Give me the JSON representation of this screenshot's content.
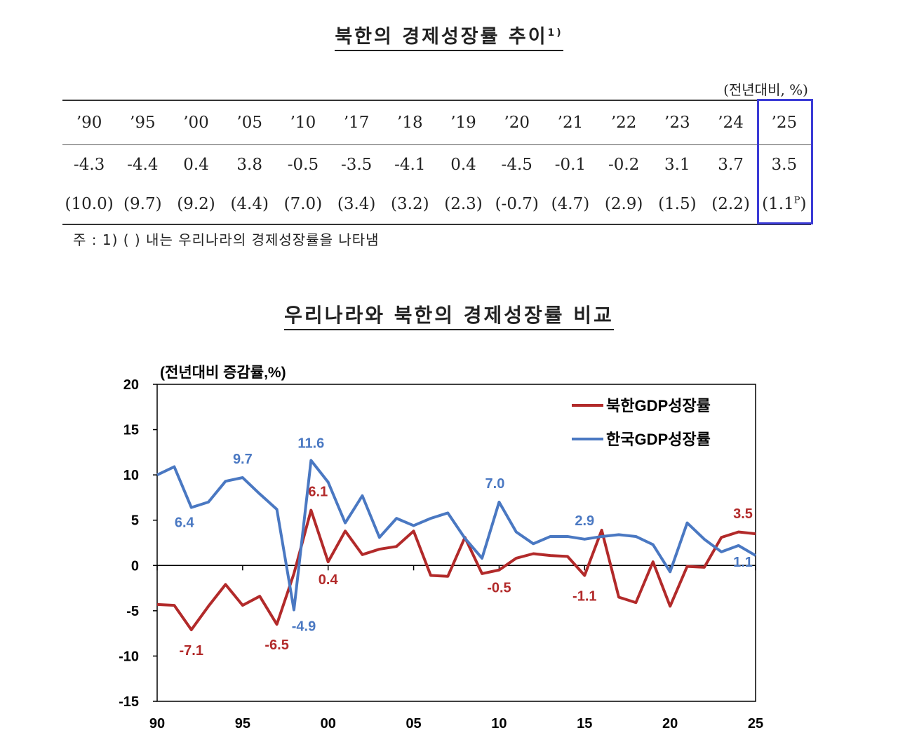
{
  "header": {
    "title": "북한의 경제성장률 추이",
    "title_sup": "1)",
    "unit": "(전년대비, %)"
  },
  "table": {
    "years": [
      "’90",
      "’95",
      "’00",
      "’05",
      "’10",
      "’17",
      "’18",
      "’19",
      "’20",
      "’21",
      "’22",
      "’23",
      "’24",
      "’25"
    ],
    "north_korea": [
      "-4.3",
      "-4.4",
      "0.4",
      "3.8",
      "-0.5",
      "-3.5",
      "-4.1",
      "0.4",
      "-4.5",
      "-0.1",
      "-0.2",
      "3.1",
      "3.7",
      "3.5"
    ],
    "south_korea": [
      "(10.0)",
      "(9.7)",
      "(9.2)",
      "(4.4)",
      "(7.0)",
      "(3.4)",
      "(3.2)",
      "(2.3)",
      "(-0.7)",
      "(4.7)",
      "(2.9)",
      "(1.5)",
      "(2.2)",
      "(1.1P)"
    ],
    "highlight_color": "#3b3bd6"
  },
  "note": "주 : 1) (    ) 내는 우리나라의 경제성장률을 나타냄",
  "chart_title": "우리나라와 북한의 경제성장률 비교",
  "chart_data": {
    "type": "line",
    "ylabel": "(전년대비 증감률,%)",
    "ylim": [
      -15,
      20
    ],
    "yticks": [
      "20",
      "15",
      "10",
      "5",
      "0",
      "-5",
      "-10",
      "-15"
    ],
    "xlim": [
      1990,
      2025
    ],
    "xticks": [
      "90",
      "95",
      "00",
      "05",
      "10",
      "15",
      "20",
      "25"
    ],
    "legend_position": "top-right",
    "series": [
      {
        "name": "북한GDP성장률",
        "color": "#b22a2a",
        "x": [
          1990,
          1991,
          1992,
          1993,
          1994,
          1995,
          1996,
          1997,
          1998,
          1999,
          2000,
          2001,
          2002,
          2003,
          2004,
          2005,
          2006,
          2007,
          2008,
          2009,
          2010,
          2011,
          2012,
          2013,
          2014,
          2015,
          2016,
          2017,
          2018,
          2019,
          2020,
          2021,
          2022,
          2023,
          2024,
          2025
        ],
        "values": [
          -4.3,
          -4.4,
          -7.1,
          -4.5,
          -2.1,
          -4.4,
          -3.4,
          -6.5,
          -0.9,
          6.1,
          0.4,
          3.8,
          1.2,
          1.8,
          2.1,
          3.8,
          -1.1,
          -1.2,
          3.1,
          -0.9,
          -0.5,
          0.8,
          1.3,
          1.1,
          1.0,
          -1.1,
          3.9,
          -3.5,
          -4.1,
          0.4,
          -4.5,
          -0.1,
          -0.2,
          3.1,
          3.7,
          3.5
        ]
      },
      {
        "name": "한국GDP성장률",
        "color": "#4a78c2",
        "x": [
          1990,
          1991,
          1992,
          1993,
          1994,
          1995,
          1996,
          1997,
          1998,
          1999,
          2000,
          2001,
          2002,
          2003,
          2004,
          2005,
          2006,
          2007,
          2008,
          2009,
          2010,
          2011,
          2012,
          2013,
          2014,
          2015,
          2016,
          2017,
          2018,
          2019,
          2020,
          2021,
          2022,
          2023,
          2024,
          2025
        ],
        "values": [
          10.0,
          10.9,
          6.4,
          7.0,
          9.3,
          9.7,
          7.9,
          6.2,
          -4.9,
          11.6,
          9.2,
          4.7,
          7.7,
          3.1,
          5.2,
          4.4,
          5.2,
          5.8,
          3.0,
          0.8,
          7.0,
          3.7,
          2.4,
          3.2,
          3.2,
          2.9,
          3.2,
          3.4,
          3.2,
          2.3,
          -0.7,
          4.7,
          2.9,
          1.5,
          2.2,
          1.1
        ]
      }
    ],
    "annotations": [
      {
        "series": 0,
        "x": 1992,
        "text": "-7.1"
      },
      {
        "series": 0,
        "x": 1997,
        "text": "-6.5"
      },
      {
        "series": 0,
        "x": 1999,
        "text": "6.1"
      },
      {
        "series": 0,
        "x": 2000,
        "text": "0.4"
      },
      {
        "series": 0,
        "x": 2010,
        "text": "-0.5"
      },
      {
        "series": 0,
        "x": 2015,
        "text": "-1.1"
      },
      {
        "series": 0,
        "x": 2025,
        "text": "3.5"
      },
      {
        "series": 1,
        "x": 1992,
        "text": "6.4"
      },
      {
        "series": 1,
        "x": 1995,
        "text": "9.7"
      },
      {
        "series": 1,
        "x": 1998,
        "text": "-4.9"
      },
      {
        "series": 1,
        "x": 1999,
        "text": "11.6"
      },
      {
        "series": 1,
        "x": 2010,
        "text": "7.0"
      },
      {
        "series": 1,
        "x": 2015,
        "text": "2.9"
      },
      {
        "series": 1,
        "x": 2025,
        "text": "1.1"
      }
    ]
  }
}
